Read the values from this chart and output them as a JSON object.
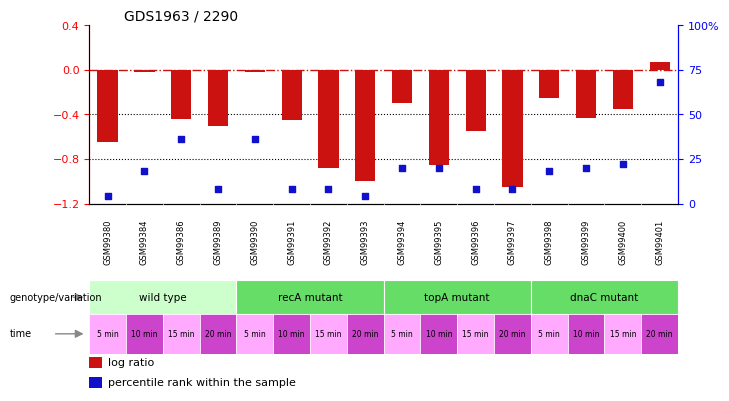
{
  "title": "GDS1963 / 2290",
  "samples": [
    "GSM99380",
    "GSM99384",
    "GSM99386",
    "GSM99389",
    "GSM99390",
    "GSM99391",
    "GSM99392",
    "GSM99393",
    "GSM99394",
    "GSM99395",
    "GSM99396",
    "GSM99397",
    "GSM99398",
    "GSM99399",
    "GSM99400",
    "GSM99401"
  ],
  "log_ratio": [
    -0.65,
    -0.02,
    -0.44,
    -0.5,
    -0.02,
    -0.45,
    -0.88,
    -1.0,
    -0.3,
    -0.85,
    -0.55,
    -1.05,
    -0.25,
    -0.43,
    -0.35,
    0.07
  ],
  "percentile": [
    4,
    18,
    36,
    8,
    36,
    8,
    8,
    4,
    20,
    20,
    8,
    8,
    18,
    20,
    22,
    68
  ],
  "ylim_left": [
    -1.2,
    0.4
  ],
  "ylim_right": [
    0,
    100
  ],
  "bar_color": "#cc1111",
  "dot_color": "#1111cc",
  "hline_color": "#cc1111",
  "groups": [
    {
      "label": "wild type",
      "start": 0,
      "end": 4,
      "color": "#ccffcc"
    },
    {
      "label": "recA mutant",
      "start": 4,
      "end": 8,
      "color": "#66dd66"
    },
    {
      "label": "topA mutant",
      "start": 8,
      "end": 12,
      "color": "#66dd66"
    },
    {
      "label": "dnaC mutant",
      "start": 12,
      "end": 16,
      "color": "#66dd66"
    }
  ],
  "time_labels": [
    "5 min",
    "10 min",
    "15 min",
    "20 min",
    "5 min",
    "10 min",
    "15 min",
    "20 min",
    "5 min",
    "10 min",
    "15 min",
    "20 min",
    "5 min",
    "10 min",
    "15 min",
    "20 min"
  ],
  "time_colors_odd": "#ffaaff",
  "time_colors_even": "#cc44cc",
  "sample_bg": "#cccccc",
  "genotype_label": "genotype/variation",
  "time_label": "time",
  "legend_bar": "log ratio",
  "legend_dot": "percentile rank within the sample",
  "yticks_left": [
    0.4,
    0.0,
    -0.4,
    -0.8,
    -1.2
  ],
  "yticks_right": [
    100,
    75,
    50,
    25,
    0
  ],
  "grid_hlines": [
    -0.4,
    -0.8
  ]
}
